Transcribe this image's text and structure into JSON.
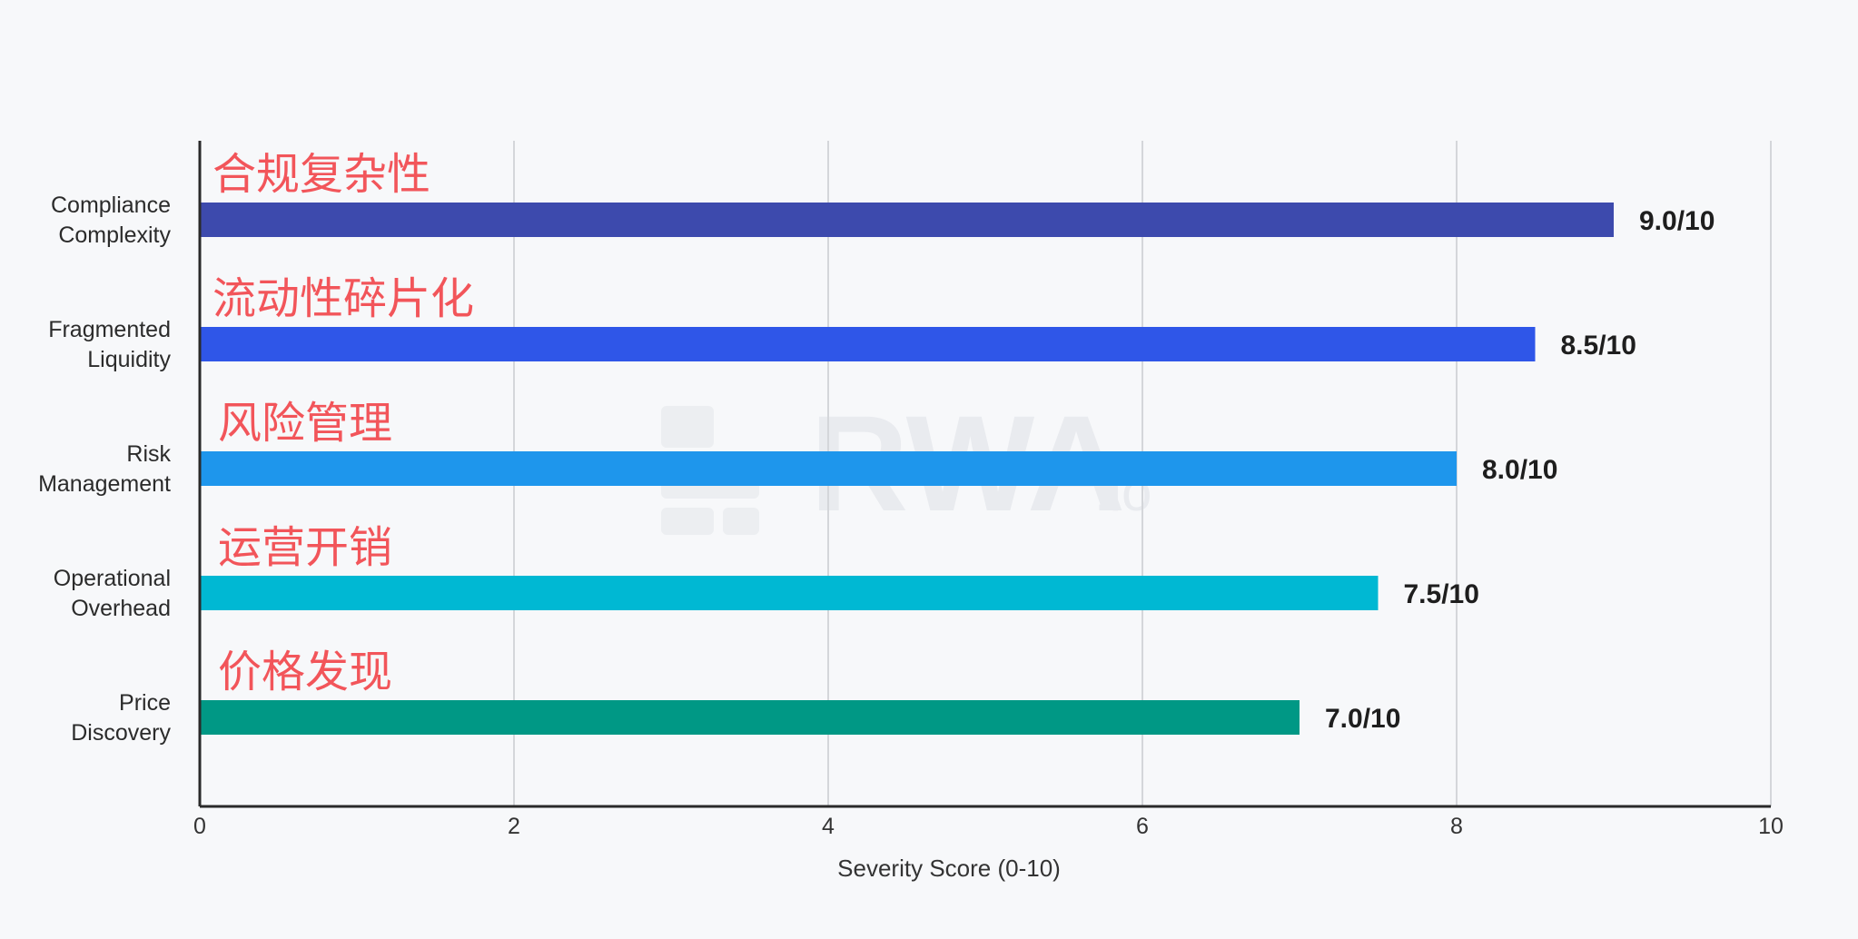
{
  "chart_data": {
    "type": "bar",
    "orientation": "horizontal",
    "categories": [
      [
        "Compliance",
        "Complexity"
      ],
      [
        "Fragmented",
        "Liquidity"
      ],
      [
        "Risk",
        "Management"
      ],
      [
        "Operational",
        "Overhead"
      ],
      [
        "Price",
        "Discovery"
      ]
    ],
    "annotations_cn": [
      "合规复杂性",
      "流动性碎片化",
      "风险管理",
      "运营开销",
      "价格发现"
    ],
    "values": [
      9.0,
      8.5,
      8.0,
      7.5,
      7.0
    ],
    "value_labels": [
      "9.0/10",
      "8.5/10",
      "8.0/10",
      "7.5/10",
      "7.0/10"
    ],
    "colors": [
      "#3d4aad",
      "#2f56e8",
      "#1e96ec",
      "#00b8d3",
      "#009885"
    ],
    "annotation_color": "#f2555a",
    "xlabel": "Severity Score (0-10)",
    "xlim": [
      0,
      10
    ],
    "xticks": [
      0,
      2,
      4,
      6,
      8,
      10
    ],
    "grid": "vertical",
    "legend": "none"
  },
  "watermark": {
    "text": "RWA",
    "suffix": ".io"
  }
}
